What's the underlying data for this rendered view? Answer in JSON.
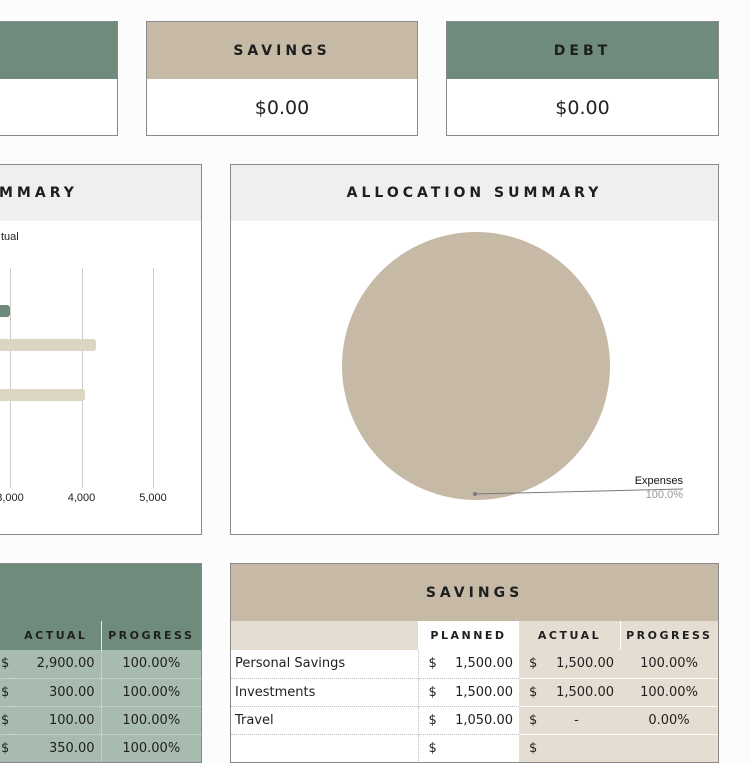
{
  "top_cards": [
    {
      "title": "",
      "value": ""
    },
    {
      "title": "SAVINGS",
      "value": "$0.00"
    },
    {
      "title": "DEBT",
      "value": "$0.00"
    }
  ],
  "bar_summary": {
    "title": "MMARY",
    "legend": "tual"
  },
  "allocation_summary": {
    "title": "ALLOCATION SUMMARY",
    "label": "Expenses",
    "percent": "100.0%"
  },
  "chart_data": [
    {
      "type": "bar",
      "orientation": "horizontal",
      "xticks": [
        "3,000",
        "4,000",
        "5,000"
      ],
      "series": [
        {
          "values": [
            3000,
            4200,
            4050
          ]
        }
      ],
      "colors": [
        "#6f8b7c",
        "#ddd5c4",
        "#ddd5c4"
      ],
      "legend": "tual"
    },
    {
      "type": "pie",
      "labels": [
        "Expenses"
      ],
      "values": [
        100.0
      ],
      "colors": [
        "#c6b9a6"
      ]
    }
  ],
  "left_table": {
    "headers": [
      "ACTUAL",
      "PROGRESS"
    ],
    "rows": [
      {
        "currency": "$",
        "actual": "2,900.00",
        "progress": "100.00%"
      },
      {
        "currency": "$",
        "actual": "300.00",
        "progress": "100.00%"
      },
      {
        "currency": "$",
        "actual": "100.00",
        "progress": "100.00%"
      },
      {
        "currency": "$",
        "actual": "350.00",
        "progress": "100.00%"
      }
    ]
  },
  "savings_table": {
    "title": "SAVINGS",
    "headers": [
      "",
      "PLANNED",
      "ACTUAL",
      "PROGRESS"
    ],
    "rows": [
      {
        "name": "Personal Savings",
        "p_cur": "$",
        "planned": "1,500.00",
        "a_cur": "$",
        "actual": "1,500.00",
        "progress": "100.00%"
      },
      {
        "name": "Investments",
        "p_cur": "$",
        "planned": "1,500.00",
        "a_cur": "$",
        "actual": "1,500.00",
        "progress": "100.00%"
      },
      {
        "name": "Travel",
        "p_cur": "$",
        "planned": "1,050.00",
        "a_cur": "$",
        "actual": "-",
        "progress": "0.00%"
      },
      {
        "name": "",
        "p_cur": "$",
        "planned": "",
        "a_cur": "$",
        "actual": "",
        "progress": ""
      }
    ]
  }
}
